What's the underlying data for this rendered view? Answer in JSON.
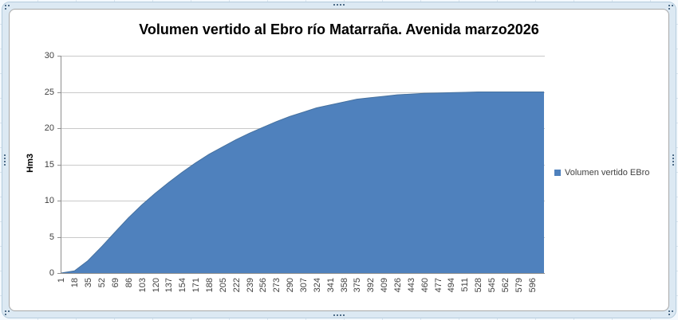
{
  "chart_data": {
    "type": "area",
    "title": "Volumen vertido al Ebro río Matarraña. Avenida marzo2026",
    "xlabel": "",
    "ylabel": "Hm3",
    "ylim": [
      0,
      30
    ],
    "yticks": [
      0,
      5,
      10,
      15,
      20,
      25,
      30
    ],
    "grid": "horizontal",
    "legend_position": "right",
    "x_total": 611,
    "categories": [
      1,
      18,
      35,
      52,
      69,
      86,
      103,
      120,
      137,
      154,
      171,
      188,
      205,
      222,
      239,
      256,
      273,
      290,
      307,
      324,
      341,
      358,
      375,
      392,
      409,
      426,
      443,
      460,
      477,
      494,
      511,
      528,
      545,
      562,
      579,
      596
    ],
    "series": [
      {
        "name": "Volumen vertido EBro",
        "color": "#4F81BD",
        "edge_color": "#46719f",
        "values": [
          0,
          0.3,
          1.7,
          3.6,
          5.6,
          7.6,
          9.4,
          11.0,
          12.5,
          13.9,
          15.2,
          16.4,
          17.4,
          18.4,
          19.3,
          20.1,
          20.9,
          21.6,
          22.2,
          22.8,
          23.2,
          23.6,
          24.0,
          24.2,
          24.4,
          24.6,
          24.7,
          24.8,
          24.85,
          24.9,
          24.95,
          25.0,
          25.0,
          25.0,
          25.0,
          25.0
        ]
      }
    ]
  },
  "colors": {
    "area_fill": "#4F81BD",
    "area_edge": "#46719f",
    "gridline": "#c9c9c9",
    "axis": "#8e8e8e",
    "tick_text": "#3f3f3f",
    "frame_fill": "#dce9f3",
    "frame_border": "#b5ccdd",
    "canvas_border": "#a8a8a8",
    "worksheet_bg": "#f4f9fd",
    "worksheet_grid": "#dae5ef",
    "handle_dot": "#4f6d89"
  }
}
